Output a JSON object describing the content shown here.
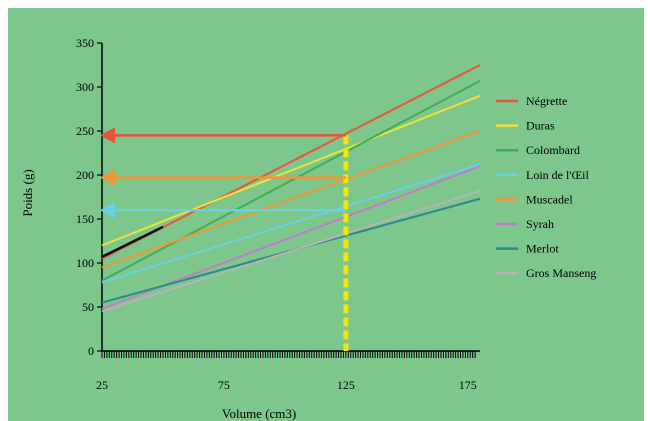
{
  "chart_data": {
    "type": "line",
    "xlabel": "Volume (cm3)",
    "ylabel": "Poids (g)",
    "xlim": [
      25,
      180
    ],
    "ylim": [
      0,
      350
    ],
    "xticks": [
      "25",
      "75",
      "125",
      "175"
    ],
    "xtick_values": [
      25,
      75,
      125,
      175
    ],
    "yticks": [
      "0",
      "50",
      "100",
      "150",
      "200",
      "250",
      "300",
      "350"
    ],
    "ytick_values": [
      0,
      50,
      100,
      150,
      200,
      250,
      300,
      350
    ],
    "background": "#7dc68c",
    "legend_position": "right",
    "x": [
      25,
      180
    ],
    "series": [
      {
        "name": "Négrette",
        "color": "#e8553a",
        "values": [
          105,
          325
        ]
      },
      {
        "name": "Duras",
        "color": "#ece23a",
        "values": [
          120,
          290
        ]
      },
      {
        "name": "Colombard",
        "color": "#3fae52",
        "values": [
          80,
          307
        ]
      },
      {
        "name": "Loin de l'Œil",
        "color": "#66d3e0",
        "values": [
          78,
          212
        ]
      },
      {
        "name": "Muscadel",
        "color": "#f0963a",
        "values": [
          95,
          250
        ]
      },
      {
        "name": "Syrah",
        "color": "#c07cc8",
        "values": [
          48,
          210
        ]
      },
      {
        "name": "Merlot",
        "color": "#2a8a8c",
        "values": [
          55,
          173
        ]
      },
      {
        "name": "Gros Manseng",
        "color": "#b4b4b4",
        "values": [
          45,
          182
        ]
      }
    ],
    "annotations": {
      "vertical_marker": {
        "x": 125,
        "y_top": 245,
        "color": "#f5e600"
      },
      "arrows": [
        {
          "y": 245,
          "x_from": 125,
          "x_to": 25,
          "color": "#e8553a"
        },
        {
          "y": 197,
          "x_from": 125,
          "x_to": 25,
          "color": "#f0963a"
        },
        {
          "y": 160,
          "x_from": 125,
          "x_to": 25,
          "color": "#66d3e0"
        }
      ]
    }
  }
}
